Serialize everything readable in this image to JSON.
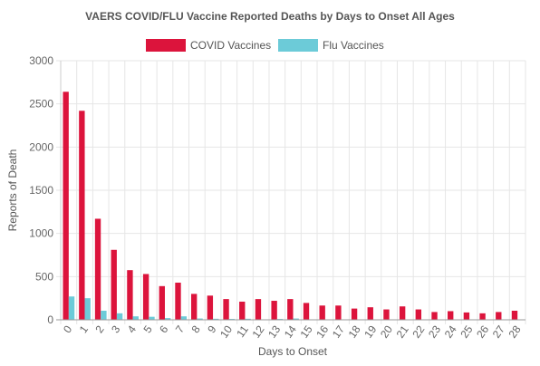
{
  "chart_data": {
    "type": "bar",
    "title": "VAERS COVID/FLU Vaccine Reported Deaths by Days to Onset All Ages",
    "xlabel": "Days to Onset",
    "ylabel": "Reports of Death",
    "ylim": [
      0,
      3000
    ],
    "yticks": [
      "0",
      "500",
      "1000",
      "1500",
      "2000",
      "2500",
      "3000"
    ],
    "grid": true,
    "legend_position": "top",
    "categories": [
      "0",
      "1",
      "2",
      "3",
      "4",
      "5",
      "6",
      "7",
      "8",
      "9",
      "10",
      "11",
      "12",
      "13",
      "14",
      "15",
      "16",
      "17",
      "18",
      "19",
      "20",
      "21",
      "22",
      "23",
      "24",
      "25",
      "26",
      "27",
      "28"
    ],
    "series": [
      {
        "name": "COVID Vaccines",
        "color": "#dc143c",
        "values": [
          2640,
          2420,
          1170,
          810,
          575,
          530,
          390,
          430,
          300,
          280,
          240,
          210,
          240,
          220,
          240,
          195,
          165,
          165,
          130,
          145,
          120,
          155,
          120,
          90,
          100,
          85,
          75,
          90,
          105
        ]
      },
      {
        "name": "Flu Vaccines",
        "color": "#6ccbd8",
        "values": [
          270,
          250,
          105,
          75,
          40,
          35,
          20,
          40,
          15,
          12,
          10,
          12,
          5,
          10,
          15,
          5,
          5,
          5,
          5,
          3,
          3,
          3,
          3,
          3,
          3,
          3,
          3,
          3,
          3
        ]
      }
    ]
  }
}
